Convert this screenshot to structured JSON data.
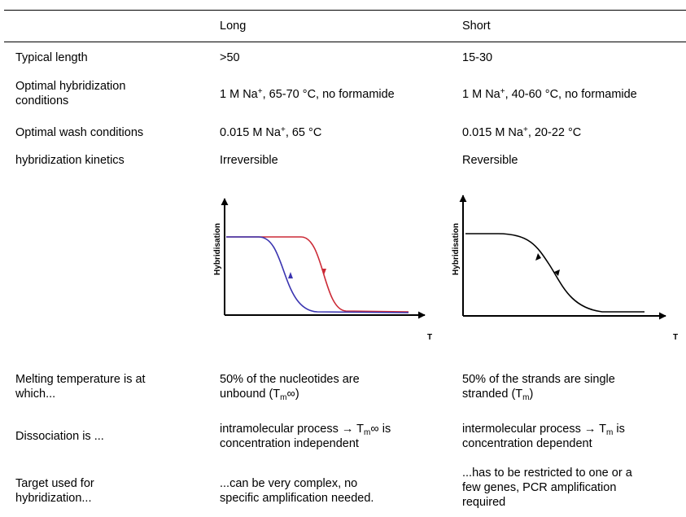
{
  "header": {
    "col_long": "Long",
    "col_short": "Short"
  },
  "rows": {
    "length": {
      "label": "Typical length",
      "long": ">50",
      "short": "15-30"
    },
    "hyb": {
      "label_1": "Optimal hybridization",
      "label_2": "conditions",
      "long_a": "1 M Na",
      "long_sup": "+",
      "long_b": ", 65-70 °C, no formamide",
      "short_a": "1 M Na",
      "short_sup": "+",
      "short_b": ", 40-60 °C, no formamide"
    },
    "wash": {
      "label": "Optimal wash conditions",
      "long_a": "0.015 M Na",
      "long_sup": "+",
      "long_b": ", 65 °C",
      "short_a": "0.015 M Na",
      "short_sup": "+",
      "short_b": ", 20-22 °C"
    },
    "kinetics": {
      "label": "hybridization kinetics",
      "long": "Irreversible",
      "short": "Reversible"
    },
    "melting": {
      "label_1": "Melting temperature is at",
      "label_2": "which...",
      "long_1": "50% of the nucleotides are",
      "long_2a": "unbound (T",
      "long_2sub": "m",
      "long_2b": "∞)",
      "short_1": "50% of the strands are single",
      "short_2a": "stranded (T",
      "short_2sub": "m",
      "short_2b": ")"
    },
    "dissociation": {
      "label": "Dissociation is ...",
      "long_1a": "intramolecular process → T",
      "long_1sub": "m",
      "long_1b": "∞ is",
      "long_2": "concentration independent",
      "short_1a": "intermolecular process → T",
      "short_1sub": "m",
      "short_1b": " is",
      "short_2": "concentration dependent"
    },
    "target": {
      "label_1": "Target used for",
      "label_2": "hybridization...",
      "long_1": "...can be very complex, no",
      "long_2": "specific amplification needed.",
      "short_1": "...has to be restricted to one or a",
      "short_2": "few genes, PCR amplification",
      "short_3": "required"
    }
  },
  "plots": {
    "y_label": "Hybridisation",
    "x_label": "T",
    "colors": {
      "axis": "#000000",
      "curve_red": "#cc2a36",
      "curve_blue": "#3a34b0",
      "curve_black": "#000000"
    }
  }
}
